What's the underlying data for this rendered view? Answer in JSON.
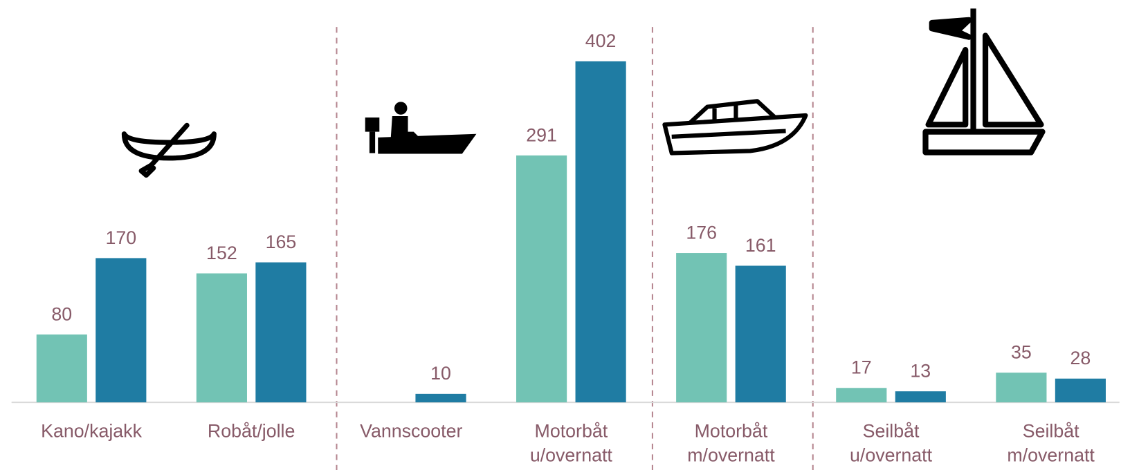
{
  "chart_data": {
    "type": "bar",
    "categories": [
      "Kano/kajakk",
      "Robåt/jolle",
      "Vannscooter",
      "Motorbåt\nu/overnatt",
      "Motorbåt\nm/overnatt",
      "Seilbåt\nu/overnatt",
      "Seilbåt\nm/overnatt"
    ],
    "series": [
      {
        "color": "#72c3b4",
        "values": [
          80,
          152,
          null,
          291,
          176,
          17,
          35
        ]
      },
      {
        "color": "#1f7ca3",
        "values": [
          170,
          165,
          10,
          402,
          161,
          13,
          28
        ]
      }
    ]
  }
}
